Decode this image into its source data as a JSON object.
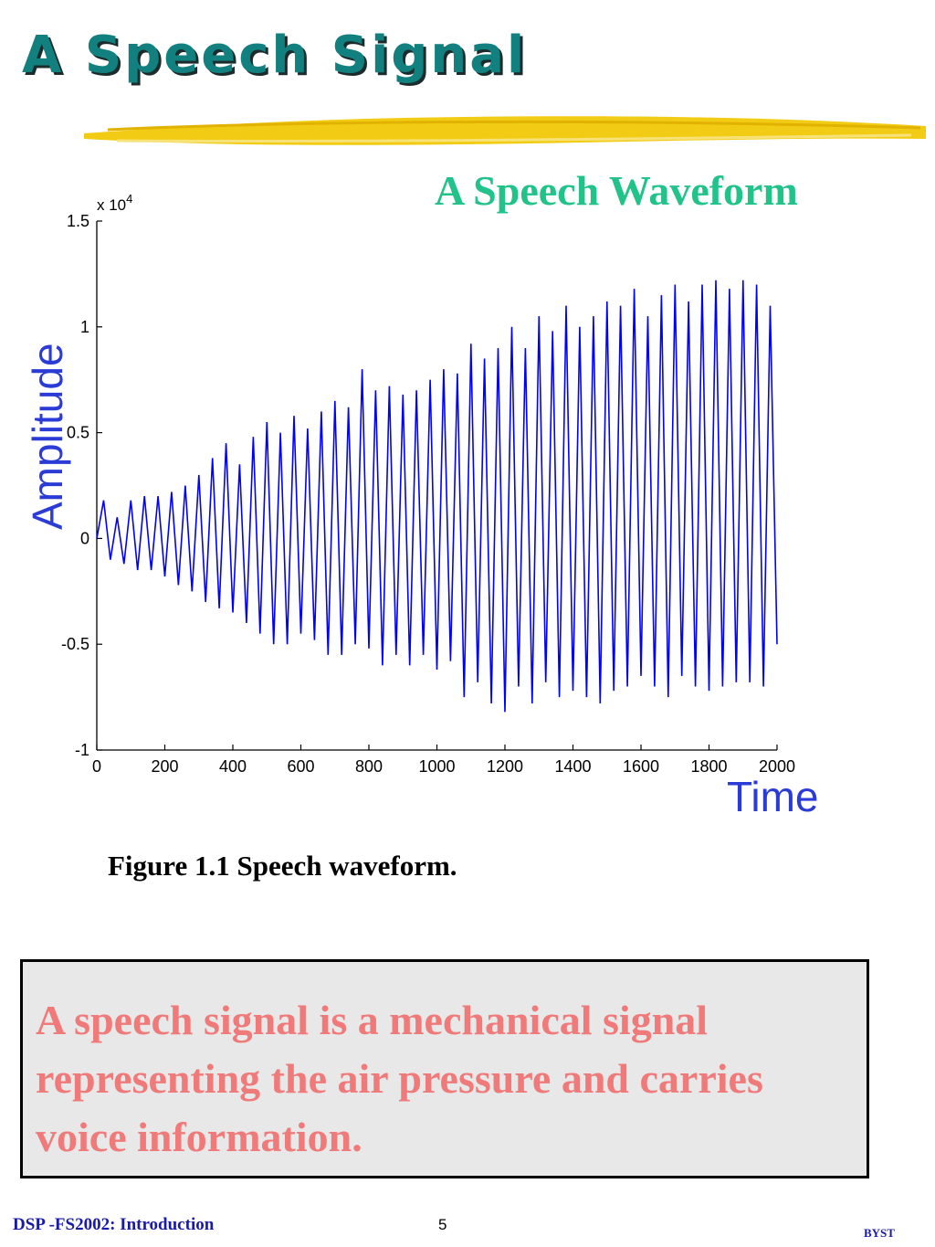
{
  "slide": {
    "title": "A Speech Signal",
    "chart_title": "A Speech Waveform",
    "figure_caption": "Figure 1.1 Speech waveform.",
    "note": "A speech signal is a mechanical signal representing the air pressure and carries voice information.",
    "footer_left": "DSP -FS2002: Introduction",
    "page_number": "5",
    "footer_right": "BYST"
  },
  "colors": {
    "title": "#138080",
    "chart_title": "#22c38a",
    "waveform": "#0000ff",
    "axis_labels": "#2b3bd6",
    "note_text": "#f07a7a",
    "note_background": "#e8e8e8",
    "footer": "#1a1aa8",
    "brush_stroke": "#f2cc14"
  },
  "chart_data": {
    "type": "line",
    "title": "A Speech Waveform",
    "xlabel": "Time",
    "ylabel": "Amplitude",
    "y_exponent": "x 10",
    "y_exponent_power": "4",
    "xlim": [
      0,
      2000
    ],
    "ylim": [
      -1,
      1.5
    ],
    "x_ticks": [
      "0",
      "200",
      "400",
      "600",
      "800",
      "1000",
      "1200",
      "1400",
      "1600",
      "1800",
      "2000"
    ],
    "y_ticks": [
      "-1",
      "-0.5",
      "0",
      "0.5",
      "1",
      "1.5"
    ],
    "grid": false,
    "series": [
      {
        "x": [
          0,
          20,
          40,
          60,
          80,
          100,
          120,
          140,
          160,
          180,
          200,
          220,
          240,
          260,
          280,
          300,
          320,
          340,
          360,
          380,
          400,
          420,
          440,
          460,
          480,
          500,
          520,
          540,
          560,
          580,
          600,
          620,
          640,
          660,
          680,
          700,
          720,
          740,
          760,
          780,
          800,
          820,
          840,
          860,
          880,
          900,
          920,
          940,
          960,
          980,
          1000,
          1020,
          1040,
          1060,
          1080,
          1100,
          1120,
          1140,
          1160,
          1180,
          1200,
          1220,
          1240,
          1260,
          1280,
          1300,
          1320,
          1340,
          1360,
          1380,
          1400,
          1420,
          1440,
          1460,
          1480,
          1500,
          1520,
          1540,
          1560,
          1580,
          1600,
          1620,
          1640,
          1660,
          1680,
          1700,
          1720,
          1740,
          1760,
          1780,
          1800,
          1820,
          1840,
          1860,
          1880,
          1900,
          1920,
          1940,
          1960,
          1980,
          2000
        ],
        "values": [
          0.0,
          0.18,
          -0.1,
          0.1,
          -0.12,
          0.18,
          -0.15,
          0.2,
          -0.15,
          0.2,
          -0.18,
          0.22,
          -0.22,
          0.25,
          -0.25,
          0.3,
          -0.3,
          0.38,
          -0.33,
          0.45,
          -0.35,
          0.35,
          -0.4,
          0.48,
          -0.45,
          0.55,
          -0.5,
          0.5,
          -0.5,
          0.58,
          -0.45,
          0.52,
          -0.48,
          0.6,
          -0.55,
          0.65,
          -0.55,
          0.62,
          -0.5,
          0.8,
          -0.52,
          0.7,
          -0.6,
          0.72,
          -0.55,
          0.68,
          -0.6,
          0.7,
          -0.55,
          0.75,
          -0.62,
          0.8,
          -0.58,
          0.78,
          -0.75,
          0.92,
          -0.68,
          0.85,
          -0.78,
          0.9,
          -0.82,
          1.0,
          -0.7,
          0.9,
          -0.78,
          1.05,
          -0.68,
          0.98,
          -0.75,
          1.1,
          -0.72,
          1.0,
          -0.75,
          1.05,
          -0.78,
          1.12,
          -0.72,
          1.1,
          -0.7,
          1.18,
          -0.65,
          1.05,
          -0.7,
          1.15,
          -0.75,
          1.2,
          -0.65,
          1.12,
          -0.7,
          1.2,
          -0.72,
          1.22,
          -0.7,
          1.18,
          -0.68,
          1.22,
          -0.68,
          1.2,
          -0.7,
          1.1,
          -0.5
        ]
      }
    ]
  }
}
